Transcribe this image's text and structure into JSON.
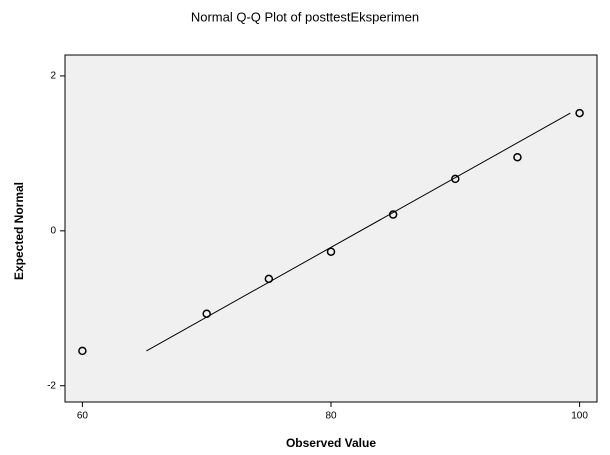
{
  "chart_data": {
    "type": "scatter",
    "title": "Normal Q-Q Plot of posttestEksperimen",
    "x_label": "Observed Value",
    "y_label": "Expected Normal",
    "x": [
      60,
      70,
      75,
      80,
      85,
      90,
      95,
      100
    ],
    "values": [
      -1.55,
      -1.07,
      -0.62,
      -0.27,
      0.21,
      0.67,
      0.95,
      1.52
    ],
    "reference_line": {
      "x": [
        65.15,
        99.26
      ],
      "values": [
        -1.55,
        1.52
      ]
    },
    "xlim": [
      58.6,
      101.4
    ],
    "xticks": [
      60,
      80,
      100
    ],
    "ylim": [
      -2.21,
      2.27
    ],
    "yticks": [
      -2,
      0,
      2
    ],
    "color": "#000000",
    "plot_background": "#f0f0f0"
  }
}
